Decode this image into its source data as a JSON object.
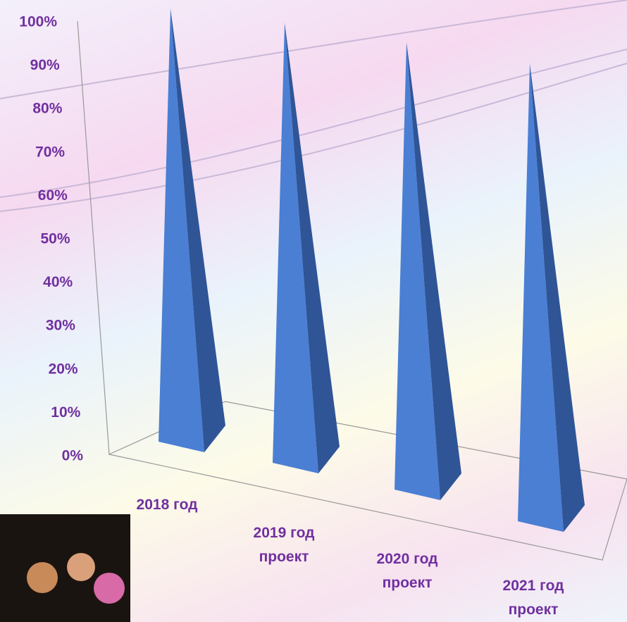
{
  "chart_data": {
    "type": "pyramid",
    "categories": [
      "2018 год",
      "2019 год\nпроект",
      "2020 год\nпроект",
      "2021 год\nпроект"
    ],
    "values": [
      100,
      100,
      100,
      100
    ],
    "color": "#4a7fd4",
    "ylim": [
      0,
      100
    ],
    "yticks": [
      {
        "value": 0,
        "label": "0%"
      },
      {
        "value": 10,
        "label": "10%"
      },
      {
        "value": 20,
        "label": "20%"
      },
      {
        "value": 30,
        "label": "30%"
      },
      {
        "value": 40,
        "label": "40%"
      },
      {
        "value": 50,
        "label": "50%"
      },
      {
        "value": 60,
        "label": "60%"
      },
      {
        "value": 70,
        "label": "70%"
      },
      {
        "value": 80,
        "label": "80%"
      },
      {
        "value": 90,
        "label": "90%"
      },
      {
        "value": 100,
        "label": "100%"
      }
    ]
  }
}
